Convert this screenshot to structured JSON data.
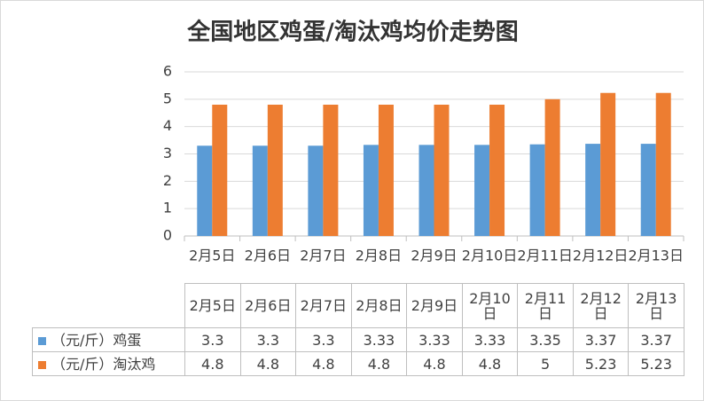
{
  "chart_data": {
    "type": "bar",
    "title": "全国地区鸡蛋/淘汰鸡均价走势图",
    "categories": [
      "2月5日",
      "2月6日",
      "2月7日",
      "2月8日",
      "2月9日",
      "2月10日",
      "2月11日",
      "2月12日",
      "2月13日"
    ],
    "series": [
      {
        "name": "（元/斤）鸡蛋",
        "color": "#5b9bd5",
        "values": [
          3.3,
          3.3,
          3.3,
          3.33,
          3.33,
          3.33,
          3.35,
          3.37,
          3.37
        ]
      },
      {
        "name": "（元/斤）淘汰鸡",
        "color": "#ed7d31",
        "values": [
          4.8,
          4.8,
          4.8,
          4.8,
          4.8,
          4.8,
          5,
          5.23,
          5.23
        ]
      }
    ],
    "ylim": [
      0,
      6
    ],
    "yticks": [
      0,
      1,
      2,
      3,
      4,
      5,
      6
    ],
    "grid": true
  }
}
